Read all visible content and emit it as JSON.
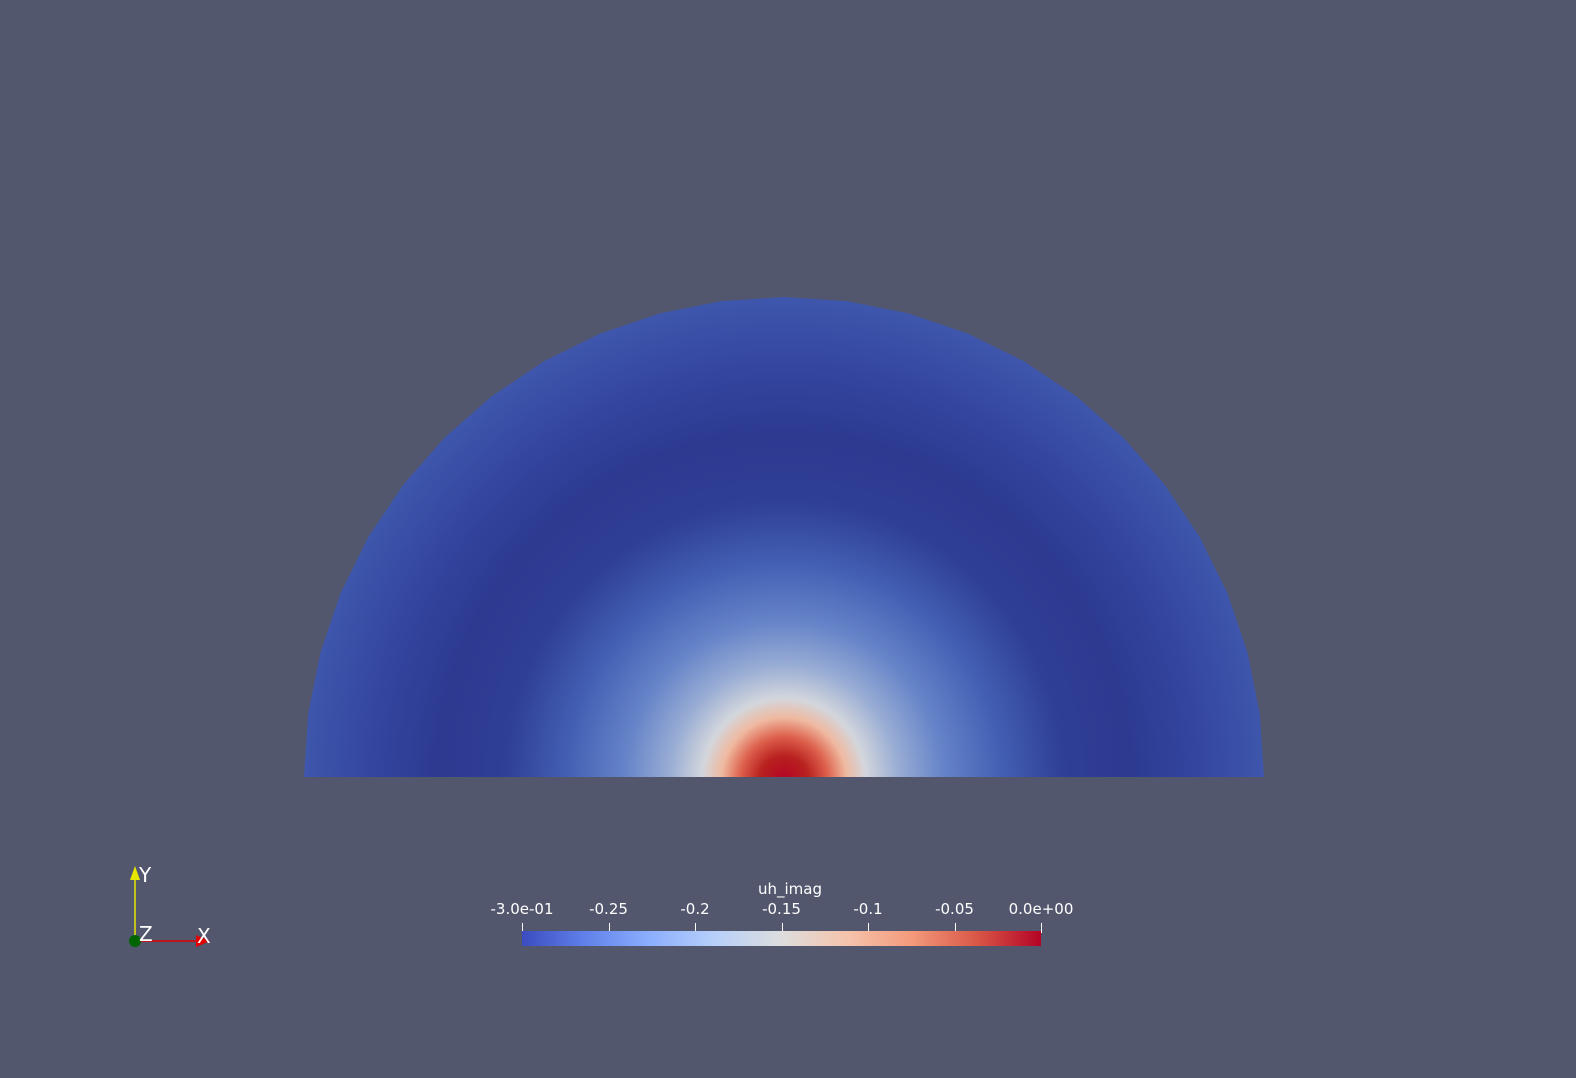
{
  "colors": {
    "background": "#52576e",
    "colormap": [
      "#3b4cc0",
      "#6282ea",
      "#8db0fe",
      "#b8d0f9",
      "#dddddd",
      "#f5c4ad",
      "#f49a7b",
      "#d95847",
      "#b40426"
    ],
    "axis_x": "#e00000",
    "axis_y": "#e6e600",
    "axis_z": "#006400"
  },
  "axes": {
    "x_label": "X",
    "y_label": "Y",
    "z_label": "Z"
  },
  "colorbar": {
    "title": "uh_imag",
    "range": [
      -0.3,
      0.0
    ],
    "ticks": [
      {
        "label": "-3.0e-01",
        "value": -0.3
      },
      {
        "label": "-0.25",
        "value": -0.25
      },
      {
        "label": "-0.2",
        "value": -0.2
      },
      {
        "label": "-0.15",
        "value": -0.15
      },
      {
        "label": "-0.1",
        "value": -0.1
      },
      {
        "label": "-0.05",
        "value": -0.05
      },
      {
        "label": "0.0e+00",
        "value": 0.0
      }
    ]
  }
}
